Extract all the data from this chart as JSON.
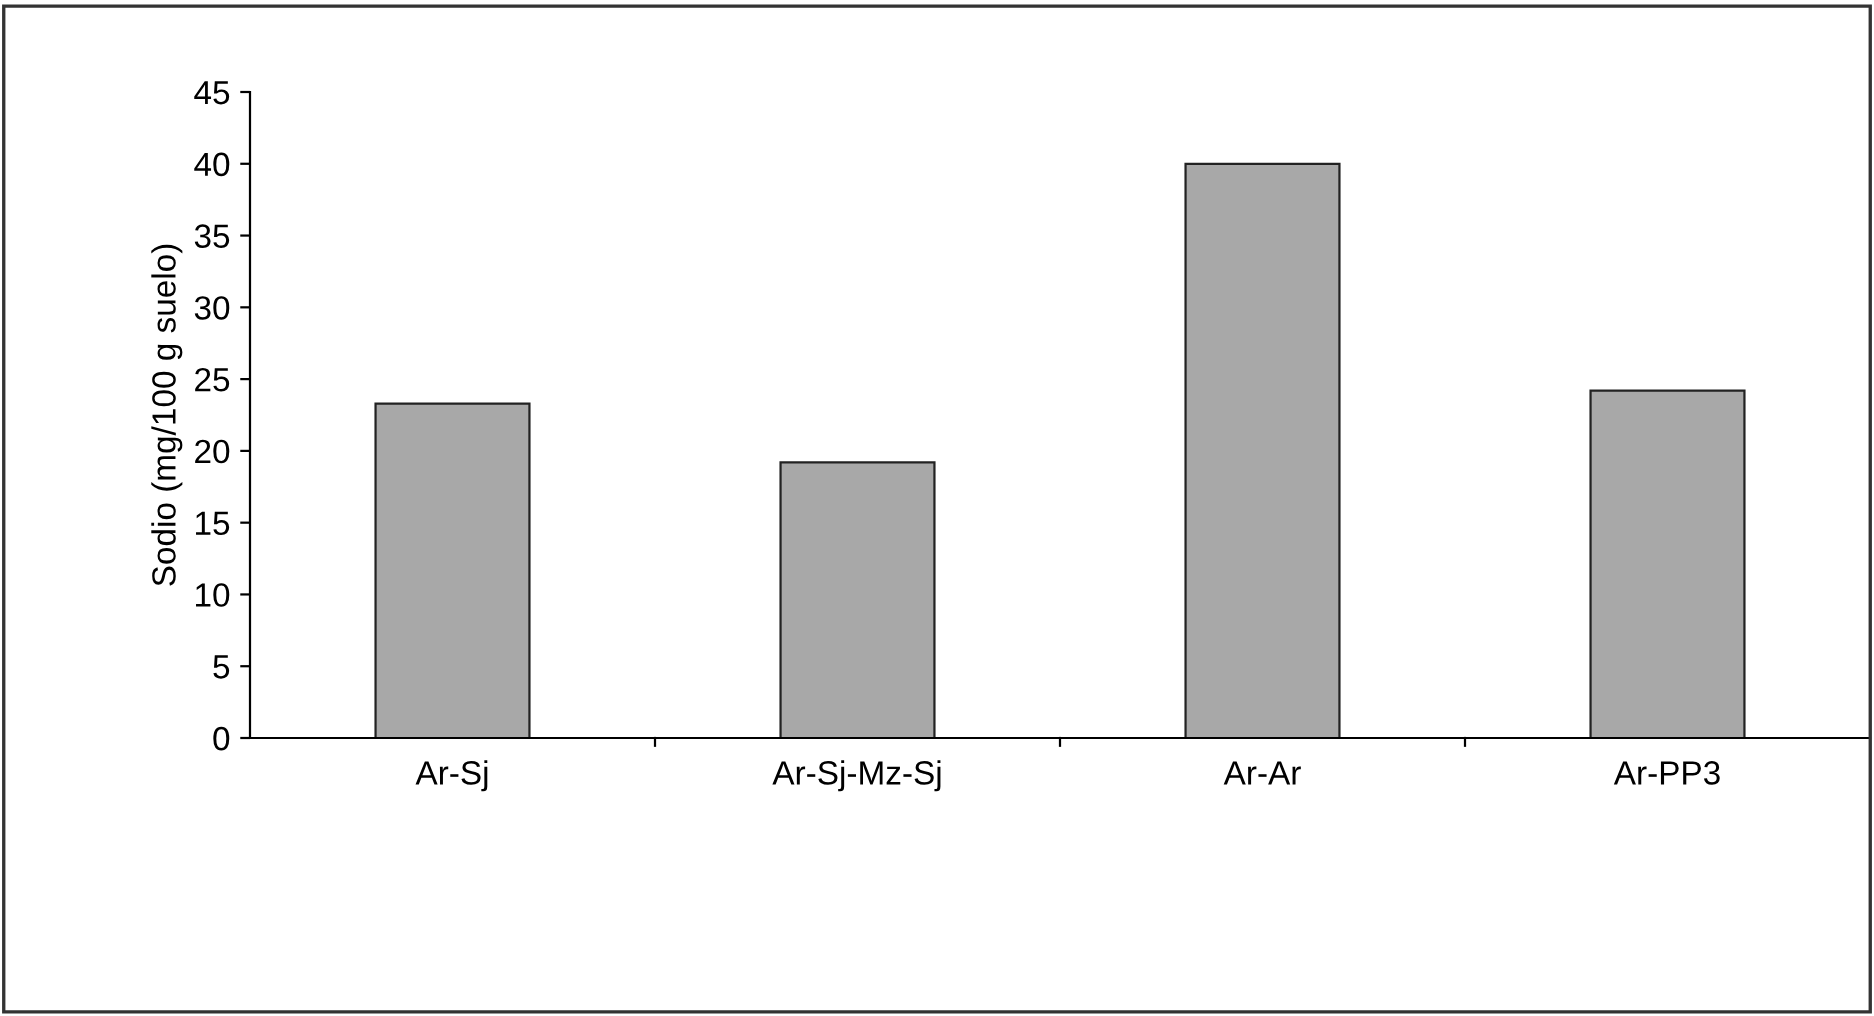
{
  "chart_data": {
    "type": "bar",
    "ylabel": "Sodio (mg/100 g suelo)",
    "categories": [
      "Ar-Sj",
      "Ar-Sj-Mz-Sj",
      "Ar-Ar",
      "Ar-PP3"
    ],
    "values": [
      23.3,
      19.2,
      40,
      24.2
    ],
    "color": "#a8a8a8",
    "ylim": [
      0,
      45
    ],
    "yticks": [
      0,
      5,
      10,
      15,
      20,
      25,
      30,
      35,
      40,
      45
    ],
    "grid": false,
    "legend": false
  }
}
